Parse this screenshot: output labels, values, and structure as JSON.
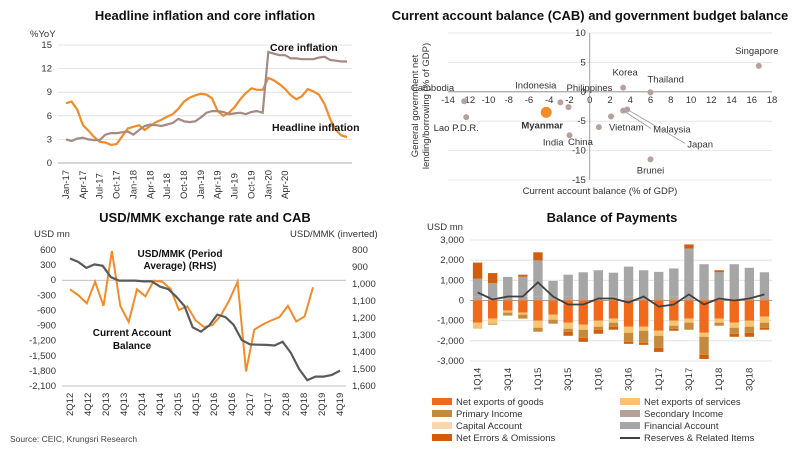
{
  "source": "Source: CEIC, Krungsri Research",
  "chart_data": [
    {
      "type": "line",
      "title": "Headline inflation and core inflation",
      "ylabel": "%YoY",
      "ylim": [
        0,
        15
      ],
      "yticks": [
        "0",
        "3",
        "6",
        "9",
        "12",
        "15"
      ],
      "xticks": [
        "Jan-17",
        "Apr-17",
        "Jul-17",
        "Oct-17",
        "Jan-18",
        "Apr-18",
        "Jul-18",
        "Oct-18",
        "Jan-19",
        "Apr-19",
        "Jul-19",
        "Oct-19",
        "Jan-20",
        "Apr-20"
      ],
      "color_headline": "#f28c28",
      "color_core": "#a58a83",
      "series": [
        {
          "name": "Headline inflation",
          "values": [
            7.6,
            7.8,
            6.8,
            4.8,
            4.1,
            3.3,
            2.7,
            2.6,
            2.3,
            2.4,
            3.4,
            4.4,
            4.6,
            4.8,
            4.2,
            4.7,
            5.2,
            5.5,
            5.9,
            6.2,
            6.9,
            7.8,
            8.3,
            8.6,
            8.8,
            8.7,
            8.2,
            6.6,
            6.0,
            6.4,
            7.1,
            8.1,
            8.9,
            9.5,
            9.3,
            9.3,
            10.8,
            10.5,
            10.0,
            9.4,
            8.6,
            8.1,
            8.5,
            9.4,
            9.1,
            8.7,
            7.5,
            5.6,
            4.2,
            3.5,
            3.3
          ]
        },
        {
          "name": "Core inflation",
          "values": [
            3.0,
            2.8,
            3.1,
            3.2,
            3.0,
            2.9,
            2.9,
            3.6,
            3.8,
            3.8,
            3.9,
            4.0,
            3.6,
            4.2,
            4.7,
            4.9,
            4.8,
            4.7,
            4.9,
            5.1,
            5.6,
            5.3,
            5.2,
            5.3,
            5.8,
            6.4,
            6.6,
            6.6,
            6.5,
            6.2,
            6.3,
            6.4,
            6.2,
            6.5,
            6.6,
            6.4,
            14.1,
            13.9,
            13.7,
            13.7,
            13.3,
            13.3,
            13.2,
            13.2,
            13.2,
            13.4,
            13.5,
            13.1,
            13.0,
            12.9,
            12.9
          ]
        }
      ]
    },
    {
      "type": "scatter",
      "title": "Current account balance (CAB) and government budget balance",
      "xlabel": "Current account balance (% of GDP)",
      "ylabel": "General government net lending/borrowing (% of GDP)",
      "xlim": [
        -14,
        18
      ],
      "ylim": [
        -15,
        10
      ],
      "xticks": [
        "-14",
        "-12",
        "-10",
        "-8",
        "-6",
        "-4",
        "-2",
        "0",
        "2",
        "4",
        "6",
        "8",
        "10",
        "12",
        "14",
        "16",
        "18"
      ],
      "yticks": [
        "10",
        "5",
        "0",
        "-5",
        "-10",
        "-15"
      ],
      "highlight_color": "#f28c28",
      "point_color": "#b5a19d",
      "points": [
        {
          "label": "Cambodia",
          "x": -12.4,
          "y": -1.6
        },
        {
          "label": "Lao P.D.R.",
          "x": -12.2,
          "y": -4.3
        },
        {
          "label": "Indonesia",
          "x": -2.9,
          "y": -1.8
        },
        {
          "label": "Philippines",
          "x": -2.1,
          "y": -2.6
        },
        {
          "label": "Myanmar",
          "x": -4.3,
          "y": -3.5,
          "highlight": true
        },
        {
          "label": "India",
          "x": -2.0,
          "y": -7.4
        },
        {
          "label": "Korea",
          "x": 3.3,
          "y": 0.7
        },
        {
          "label": "Thailand",
          "x": 6.0,
          "y": -0.1
        },
        {
          "label": "Singapore",
          "x": 16.7,
          "y": 4.4
        },
        {
          "label": "China",
          "x": 0.9,
          "y": -6.0
        },
        {
          "label": "Vietnam",
          "x": 2.1,
          "y": -4.2
        },
        {
          "label": "Malaysia",
          "x": 3.3,
          "y": -3.2
        },
        {
          "label": "Japan",
          "x": 3.7,
          "y": -3.0
        },
        {
          "label": "Brunei",
          "x": 6.0,
          "y": -11.5
        }
      ]
    },
    {
      "type": "line",
      "title": "USD/MMK exchange rate and CAB",
      "ylabel": "USD mn",
      "ylabel_right": "USD/MMK (inverted)",
      "ylim": [
        -2100,
        600
      ],
      "yticks": [
        "600",
        "300",
        "0",
        "-300",
        "-600",
        "-900",
        "-1,200",
        "-1,500",
        "-1,800",
        "-2,100"
      ],
      "ylim_right": [
        800,
        1600
      ],
      "yticks_right": [
        "800",
        "900",
        "1,000",
        "1,100",
        "1,200",
        "1,300",
        "1,400",
        "1,500",
        "1,600"
      ],
      "xticks": [
        "2Q12",
        "4Q12",
        "2Q13",
        "4Q13",
        "2Q14",
        "4Q14",
        "2Q15",
        "4Q15",
        "2Q16",
        "4Q16",
        "2Q17",
        "4Q17",
        "2Q18",
        "4Q18",
        "2Q19",
        "4Q19"
      ],
      "color_cab": "#f28c28",
      "color_fx": "#5a5a5a",
      "series": [
        {
          "name": "Current Account Balance",
          "values": [
            -180,
            -300,
            -460,
            -30,
            -510,
            580,
            -510,
            -830,
            -180,
            -320,
            -10,
            -30,
            -170,
            -590,
            -520,
            -800,
            -930,
            -890,
            -700,
            -400,
            -30,
            -1810,
            -980,
            -880,
            -800,
            -730,
            -510,
            -820,
            -720,
            -140
          ]
        },
        {
          "name": "USD/MMK (Period Average) (RHS)",
          "values": [
            850,
            870,
            905,
            885,
            893,
            960,
            980,
            980,
            980,
            985,
            985,
            1015,
            1030,
            1075,
            1130,
            1255,
            1280,
            1245,
            1180,
            1195,
            1240,
            1330,
            1355,
            1357,
            1358,
            1362,
            1340,
            1405,
            1500,
            1565,
            1545,
            1545,
            1535,
            1510
          ]
        }
      ]
    },
    {
      "type": "bar",
      "title": "Balance of Payments",
      "ylabel": "USD mn",
      "ylim": [
        -3000,
        3000
      ],
      "yticks": [
        "3,000",
        "2,000",
        "1,000",
        "0",
        "-1,000",
        "-2,000",
        "-3,000"
      ],
      "categories": [
        "1Q14",
        "2Q14",
        "3Q14",
        "4Q14",
        "1Q15",
        "2Q15",
        "3Q15",
        "4Q15",
        "1Q16",
        "2Q16",
        "3Q16",
        "4Q16",
        "1Q17",
        "2Q17",
        "3Q17",
        "4Q17",
        "1Q18",
        "2Q18",
        "3Q18",
        "4Q18"
      ],
      "category_labels": [
        "1Q14",
        "3Q14",
        "1Q15",
        "3Q15",
        "1Q16",
        "3Q16",
        "1Q17",
        "3Q17",
        "1Q18",
        "3Q18"
      ],
      "series": [
        {
          "name": "Net exports of goods",
          "color": "#ef6a1a",
          "values": [
            -1100,
            -900,
            -500,
            -600,
            -1000,
            -700,
            -1100,
            -1200,
            -1000,
            -900,
            -1300,
            -1300,
            -1500,
            -1000,
            -900,
            -1600,
            -900,
            -1100,
            -1000,
            -800
          ]
        },
        {
          "name": "Net exports of services",
          "color": "#f8c471",
          "values": [
            -300,
            -250,
            -100,
            -100,
            -350,
            -250,
            -300,
            -250,
            -300,
            -200,
            -300,
            -200,
            -250,
            -250,
            -200,
            -200,
            -200,
            -250,
            -300,
            -300
          ]
        },
        {
          "name": "Primary Income",
          "color": "#c68a3d",
          "values": [
            0,
            -50,
            -150,
            -200,
            -200,
            -200,
            -150,
            -400,
            -150,
            -200,
            -450,
            -600,
            -600,
            -150,
            -350,
            -900,
            -150,
            -300,
            -300,
            -250
          ]
        },
        {
          "name": "Secondary Income",
          "color": "#b3a19a",
          "values": [
            180,
            160,
            170,
            180,
            190,
            170,
            180,
            200,
            200,
            180,
            180,
            200,
            220,
            190,
            180,
            200,
            200,
            200,
            220,
            200
          ]
        },
        {
          "name": "Capital Account",
          "color": "#f6d7b0",
          "values": [
            0,
            0,
            0,
            0,
            0,
            0,
            0,
            0,
            0,
            0,
            0,
            0,
            0,
            0,
            0,
            0,
            0,
            0,
            0,
            0
          ]
        },
        {
          "name": "Financial Account",
          "color": "#a6a6a6",
          "values": [
            900,
            700,
            1000,
            1000,
            1800,
            800,
            1100,
            1200,
            1300,
            1200,
            1500,
            1300,
            1200,
            1400,
            2400,
            1600,
            1200,
            1600,
            1400,
            1200
          ]
        },
        {
          "name": "Net Errors & Omissions",
          "color": "#d45d0c",
          "values": [
            800,
            500,
            0,
            100,
            400,
            0,
            -200,
            -200,
            -200,
            -150,
            -100,
            -100,
            -200,
            -100,
            200,
            -200,
            100,
            -150,
            -200,
            -100
          ]
        },
        {
          "name": "Reserves & Related Items",
          "color": "#404040",
          "line": true,
          "values": [
            400,
            50,
            200,
            200,
            900,
            200,
            -200,
            -200,
            100,
            100,
            -100,
            200,
            -300,
            -200,
            300,
            -200,
            100,
            0,
            100,
            300
          ]
        }
      ]
    }
  ]
}
